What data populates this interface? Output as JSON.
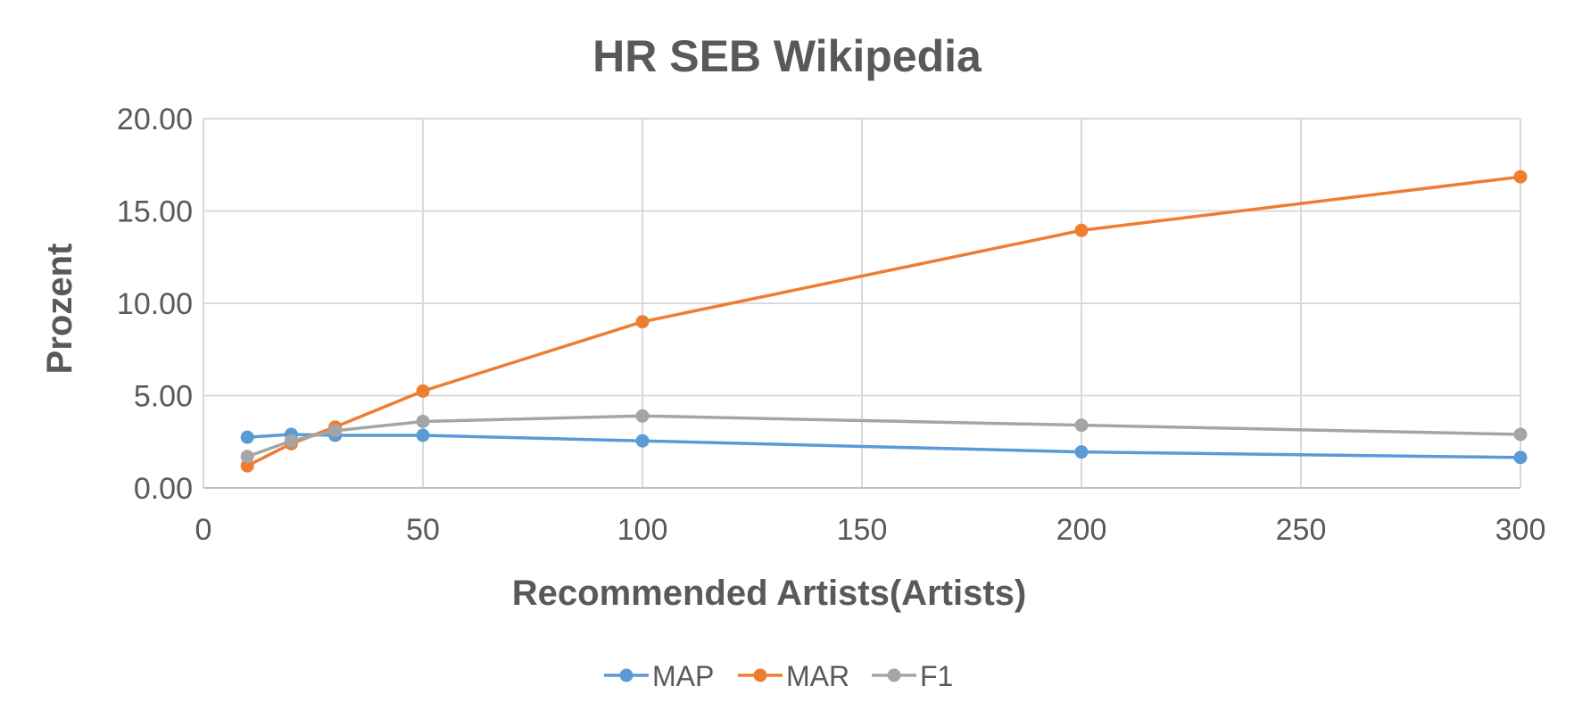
{
  "chart_data": {
    "type": "line",
    "title": "HR SEB Wikipedia",
    "xlabel": "Recommended Artists(Artists)",
    "ylabel": "Prozent",
    "xlim": [
      0,
      300
    ],
    "ylim": [
      0,
      20
    ],
    "x_ticks": [
      "0",
      "50",
      "100",
      "150",
      "200",
      "250",
      "300"
    ],
    "x_tick_values": [
      0,
      50,
      100,
      150,
      200,
      250,
      300
    ],
    "y_ticks": [
      "0.00",
      "5.00",
      "10.00",
      "15.00",
      "20.00"
    ],
    "y_tick_values": [
      0,
      5,
      10,
      15,
      20
    ],
    "grid": true,
    "legend_position": "bottom",
    "x": [
      10,
      20,
      30,
      50,
      100,
      200,
      300
    ],
    "series": [
      {
        "name": "MAP",
        "color": "#5b9bd5",
        "values": [
          2.75,
          2.9,
          2.85,
          2.85,
          2.55,
          1.95,
          1.65
        ]
      },
      {
        "name": "MAR",
        "color": "#ed7d31",
        "values": [
          1.2,
          2.4,
          3.3,
          5.25,
          9.0,
          13.95,
          16.85
        ]
      },
      {
        "name": "F1",
        "color": "#a5a5a5",
        "values": [
          1.7,
          2.55,
          3.1,
          3.6,
          3.9,
          3.4,
          2.9
        ]
      }
    ]
  }
}
